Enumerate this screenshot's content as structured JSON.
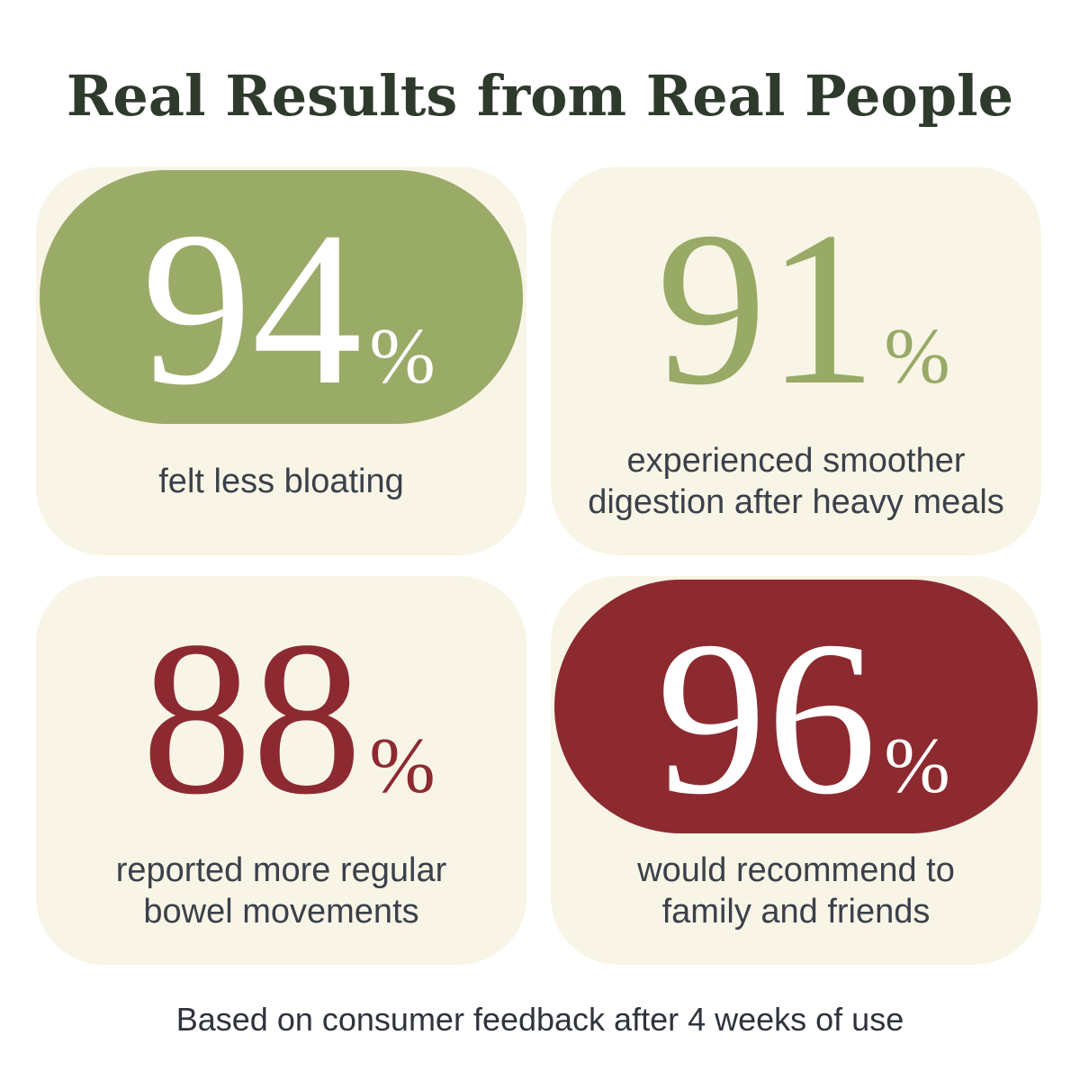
{
  "title": "Real Results from Real People",
  "stats": [
    {
      "value": 94,
      "unit": "%",
      "description": [
        "felt less bloating"
      ],
      "color": "#9aab67",
      "filled": true
    },
    {
      "value": 91,
      "unit": "%",
      "description": [
        "experienced smoother",
        "digestion after heavy meals"
      ],
      "color": "#98aa66",
      "filled": false
    },
    {
      "value": 88,
      "unit": "%",
      "description": [
        "reported more regular",
        "bowel movements"
      ],
      "color": "#8d2a31",
      "filled": false
    },
    {
      "value": 96,
      "unit": "%",
      "description": [
        "would recommend to",
        "family and friends"
      ],
      "color": "#8c2a2f",
      "filled": true
    }
  ],
  "footnote": "Based on consumer feedback after 4 weeks of use"
}
